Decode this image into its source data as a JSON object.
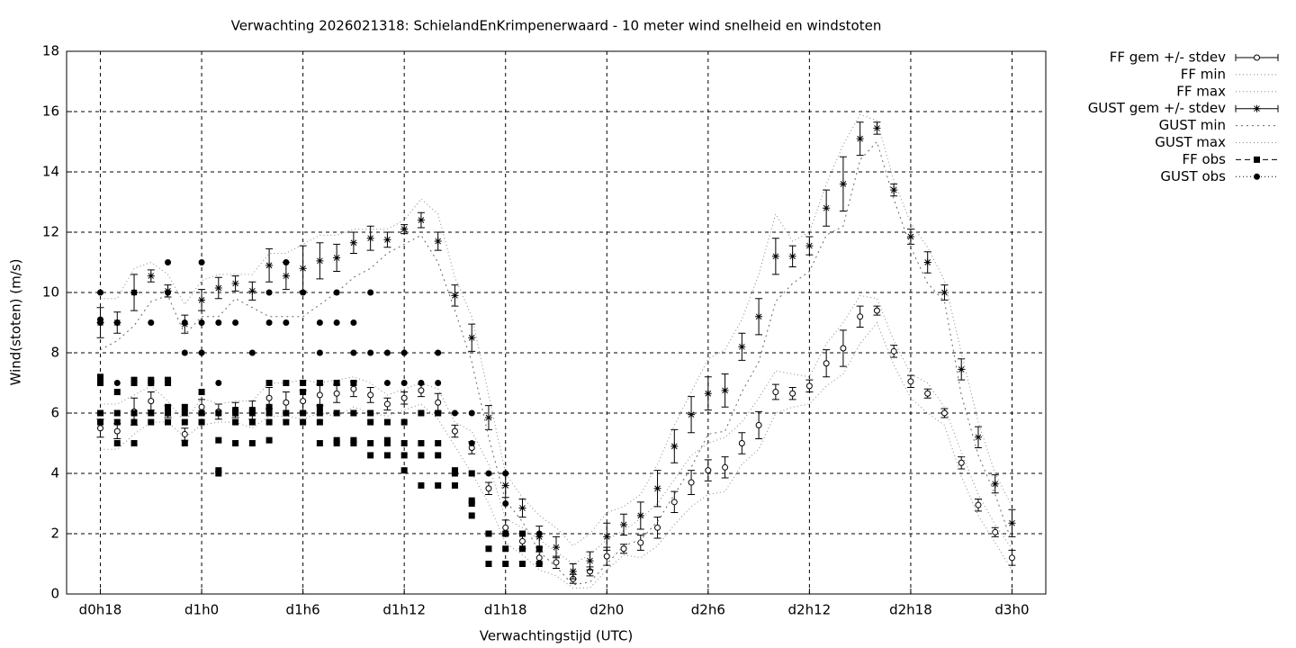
{
  "chart_data": {
    "type": "errorbar",
    "title": "Verwachting 2026021318: SchielandEnKrimpenerwaard - 10 meter wind snelheid en windstoten",
    "xlabel": "Verwachtingstijd (UTC)",
    "ylabel": "Wind(stoten) (m/s)",
    "xlim": [
      16,
      74
    ],
    "xticks": [
      {
        "value": 18,
        "label": "d0h18"
      },
      {
        "value": 24,
        "label": "d1h0"
      },
      {
        "value": 30,
        "label": "d1h6"
      },
      {
        "value": 36,
        "label": "d1h12"
      },
      {
        "value": 42,
        "label": "d1h18"
      },
      {
        "value": 48,
        "label": "d2h0"
      },
      {
        "value": 54,
        "label": "d2h6"
      },
      {
        "value": 60,
        "label": "d2h12"
      },
      {
        "value": 66,
        "label": "d2h18"
      },
      {
        "value": 72,
        "label": "d3h0"
      }
    ],
    "ylim": [
      0,
      18
    ],
    "yticks": [
      0,
      2,
      4,
      6,
      8,
      10,
      12,
      14,
      16,
      18
    ],
    "grid": true,
    "legend": "outside-right",
    "x": [
      18,
      19,
      20,
      21,
      22,
      23,
      24,
      25,
      26,
      27,
      28,
      29,
      30,
      31,
      32,
      33,
      34,
      35,
      36,
      37,
      38,
      39,
      40,
      41,
      42,
      43,
      44,
      45,
      46,
      47,
      48,
      49,
      50,
      51,
      52,
      53,
      54,
      55,
      56,
      57,
      58,
      59,
      60,
      61,
      62,
      63,
      64,
      65,
      66,
      67,
      68,
      69,
      70,
      71,
      72
    ],
    "series": [
      {
        "name": "FF gem +/- stdev",
        "color": "#000000",
        "style": "errorbars",
        "marker": "circle",
        "values": [
          5.5,
          5.4,
          6.05,
          6.4,
          6.05,
          5.3,
          6.2,
          6.05,
          6.1,
          6.1,
          6.5,
          6.35,
          6.4,
          6.6,
          6.65,
          6.8,
          6.6,
          6.3,
          6.5,
          6.75,
          6.35,
          5.4,
          4.85,
          3.5,
          2.2,
          1.75,
          1.2,
          1.05,
          0.5,
          0.75,
          1.25,
          1.5,
          1.7,
          2.2,
          3.05,
          3.7,
          4.1,
          4.2,
          5.0,
          5.6,
          6.7,
          6.65,
          6.9,
          7.65,
          8.15,
          9.2,
          9.4,
          8.05,
          7.05,
          6.65,
          6.0,
          4.35,
          2.95,
          2.05,
          1.2
        ],
        "errors": [
          0.3,
          0.25,
          0.45,
          0.3,
          0.2,
          0.2,
          0.25,
          0.25,
          0.25,
          0.3,
          0.35,
          0.35,
          0.35,
          0.35,
          0.3,
          0.25,
          0.25,
          0.2,
          0.2,
          0.2,
          0.3,
          0.2,
          0.2,
          0.2,
          0.25,
          0.25,
          0.2,
          0.2,
          0.15,
          0.15,
          0.3,
          0.15,
          0.25,
          0.35,
          0.35,
          0.4,
          0.35,
          0.35,
          0.35,
          0.45,
          0.25,
          0.2,
          0.2,
          0.45,
          0.6,
          0.35,
          0.15,
          0.2,
          0.2,
          0.15,
          0.15,
          0.2,
          0.2,
          0.15,
          0.25
        ]
      },
      {
        "name": "FF min",
        "color": "#888888",
        "style": "lines",
        "marker": "none",
        "values": [
          4.8,
          4.8,
          5.3,
          5.7,
          5.7,
          5.2,
          5.6,
          5.7,
          5.7,
          5.5,
          5.9,
          5.9,
          5.8,
          6.0,
          5.9,
          6.2,
          6.0,
          5.9,
          6.1,
          6.3,
          5.8,
          4.9,
          4.0,
          3.0,
          1.7,
          1.3,
          0.8,
          0.6,
          0.2,
          0.2,
          0.8,
          1.3,
          1.2,
          1.6,
          2.3,
          2.9,
          3.3,
          3.4,
          4.3,
          4.8,
          6.0,
          6.2,
          6.3,
          6.9,
          7.3,
          8.3,
          9.0,
          7.6,
          6.5,
          6.0,
          5.6,
          3.9,
          2.6,
          1.7,
          0.8
        ]
      },
      {
        "name": "FF max",
        "color": "#888888",
        "style": "lines",
        "marker": "none",
        "values": [
          6.3,
          6.3,
          6.6,
          6.9,
          6.4,
          5.7,
          6.5,
          6.3,
          6.4,
          6.4,
          7.0,
          7.0,
          7.1,
          7.0,
          7.1,
          7.2,
          7.0,
          6.6,
          6.8,
          7.0,
          6.8,
          5.7,
          5.4,
          4.3,
          2.5,
          2.2,
          1.8,
          1.4,
          1.0,
          1.3,
          1.8,
          2.1,
          2.5,
          3.0,
          3.8,
          4.6,
          5.0,
          5.2,
          5.7,
          6.5,
          7.4,
          7.3,
          7.2,
          8.3,
          9.0,
          9.9,
          9.8,
          8.4,
          7.3,
          7.0,
          6.2,
          4.7,
          3.3,
          2.3,
          1.5
        ]
      },
      {
        "name": "GUST gem +/- stdev",
        "color": "#000000",
        "style": "errorbars",
        "marker": "star",
        "values": [
          9.0,
          9.0,
          10.0,
          10.55,
          10.05,
          8.95,
          9.75,
          10.15,
          10.3,
          10.05,
          10.9,
          10.55,
          10.8,
          11.05,
          11.15,
          11.65,
          11.8,
          11.75,
          12.1,
          12.4,
          11.7,
          9.9,
          8.5,
          5.85,
          3.6,
          2.85,
          1.9,
          1.55,
          0.75,
          1.1,
          1.9,
          2.3,
          2.6,
          3.5,
          4.9,
          5.95,
          6.65,
          6.75,
          8.2,
          9.2,
          11.2,
          11.2,
          11.55,
          12.8,
          13.6,
          15.1,
          15.45,
          13.4,
          11.85,
          11.0,
          10.0,
          7.45,
          5.2,
          3.65,
          2.35
        ],
        "errors": [
          0.5,
          0.35,
          0.6,
          0.2,
          0.2,
          0.3,
          0.35,
          0.35,
          0.25,
          0.3,
          0.55,
          0.45,
          0.75,
          0.6,
          0.45,
          0.35,
          0.4,
          0.25,
          0.15,
          0.25,
          0.3,
          0.35,
          0.45,
          0.4,
          0.4,
          0.3,
          0.35,
          0.35,
          0.25,
          0.3,
          0.45,
          0.35,
          0.45,
          0.6,
          0.55,
          0.6,
          0.55,
          0.55,
          0.45,
          0.6,
          0.6,
          0.35,
          0.3,
          0.6,
          0.9,
          0.55,
          0.2,
          0.2,
          0.25,
          0.35,
          0.25,
          0.35,
          0.35,
          0.3,
          0.45
        ]
      },
      {
        "name": "GUST min",
        "color": "#666666",
        "style": "lines",
        "marker": "none",
        "values": [
          8.1,
          8.4,
          8.9,
          9.7,
          9.9,
          8.6,
          9.2,
          9.2,
          9.8,
          9.5,
          9.2,
          9.2,
          9.2,
          9.6,
          10.0,
          10.5,
          10.8,
          11.3,
          11.6,
          11.9,
          11.0,
          9.4,
          7.7,
          5.2,
          3.1,
          2.4,
          1.4,
          0.9,
          0.3,
          0.4,
          1.0,
          1.6,
          1.8,
          2.4,
          3.3,
          4.2,
          5.3,
          5.4,
          6.7,
          7.7,
          9.7,
          10.3,
          10.7,
          11.9,
          12.2,
          14.4,
          15.0,
          13.1,
          11.5,
          10.3,
          9.7,
          6.6,
          4.6,
          3.3,
          1.7
        ]
      },
      {
        "name": "GUST max",
        "color": "#888888",
        "style": "lines",
        "marker": "none",
        "values": [
          9.8,
          9.8,
          10.8,
          11.0,
          10.6,
          9.6,
          10.4,
          10.6,
          10.6,
          10.6,
          11.3,
          11.3,
          11.6,
          11.9,
          11.9,
          12.1,
          12.1,
          12.1,
          12.4,
          13.1,
          12.6,
          10.5,
          9.2,
          6.6,
          4.0,
          3.2,
          2.6,
          2.2,
          1.6,
          2.0,
          2.7,
          2.9,
          3.3,
          4.3,
          5.6,
          6.7,
          7.8,
          8.1,
          9.1,
          10.6,
          12.6,
          11.7,
          12.0,
          13.6,
          14.9,
          15.9,
          15.7,
          13.7,
          12.3,
          11.5,
          10.4,
          8.0,
          5.7,
          4.0,
          2.9
        ]
      },
      {
        "name": "FF obs",
        "color": "#000000",
        "style": "points",
        "marker": "square",
        "x": [
          18,
          18,
          18,
          18,
          19,
          19,
          19,
          19,
          20,
          20,
          20,
          20,
          20,
          21,
          21,
          21,
          21,
          22,
          22,
          22,
          22,
          22,
          23,
          23,
          23,
          23,
          24,
          24,
          24,
          25,
          25,
          25,
          25,
          26,
          26,
          26,
          26,
          27,
          27,
          27,
          27,
          28,
          28,
          28,
          28,
          28,
          29,
          29,
          29,
          30,
          30,
          30,
          30,
          31,
          31,
          31,
          31,
          31,
          32,
          32,
          32,
          32,
          33,
          33,
          33,
          33,
          34,
          34,
          34,
          34,
          35,
          35,
          35,
          35,
          36,
          36,
          36,
          36,
          37,
          37,
          37,
          37,
          38,
          38,
          38,
          38,
          39,
          39,
          39,
          40,
          40,
          40,
          40,
          41,
          41,
          41,
          42,
          42,
          42,
          43,
          43,
          43,
          44,
          44
        ],
        "values": [
          7.2,
          7.0,
          6.0,
          5.7,
          6.7,
          6.0,
          5.7,
          5.0,
          7.1,
          7.0,
          6.0,
          5.7,
          5.0,
          7.1,
          7.0,
          6.0,
          5.7,
          7.1,
          7.0,
          6.2,
          6.0,
          5.7,
          6.2,
          6.0,
          5.7,
          5.0,
          6.7,
          6.0,
          5.7,
          6.0,
          5.1,
          4.1,
          4.0,
          6.1,
          6.0,
          5.7,
          5.0,
          6.1,
          6.0,
          5.7,
          5.0,
          7.0,
          6.2,
          6.0,
          5.7,
          5.1,
          7.0,
          6.0,
          5.7,
          7.0,
          6.7,
          6.0,
          5.7,
          7.0,
          6.2,
          6.0,
          5.7,
          5.0,
          7.0,
          6.0,
          5.1,
          5.0,
          7.0,
          6.0,
          5.1,
          5.0,
          6.0,
          5.7,
          5.0,
          4.6,
          5.7,
          5.1,
          5.0,
          4.6,
          5.7,
          5.0,
          4.6,
          4.1,
          6.0,
          5.0,
          4.6,
          3.6,
          6.0,
          5.0,
          4.6,
          3.6,
          4.1,
          4.0,
          3.6,
          4.0,
          3.1,
          3.0,
          2.6,
          2.0,
          1.5,
          1.0,
          2.0,
          1.5,
          1.0,
          2.0,
          1.5,
          1.0,
          1.5,
          1.0
        ]
      },
      {
        "name": "GUST obs",
        "color": "#000000",
        "style": "points",
        "marker": "dot",
        "x": [
          18,
          18,
          18,
          19,
          19,
          20,
          20,
          21,
          21,
          22,
          22,
          23,
          23,
          24,
          24,
          24,
          25,
          25,
          26,
          27,
          28,
          28,
          29,
          29,
          30,
          30,
          31,
          31,
          32,
          32,
          33,
          33,
          34,
          34,
          35,
          35,
          36,
          36,
          37,
          37,
          38,
          38,
          38,
          39,
          40,
          40,
          41,
          41,
          42,
          42,
          42,
          43,
          44
        ],
        "values": [
          10,
          9.1,
          9,
          9,
          7,
          10,
          7,
          9,
          7,
          11,
          10,
          9,
          8,
          11,
          9,
          8,
          9,
          7,
          9,
          8,
          10,
          9,
          11,
          9,
          10,
          7,
          9,
          8,
          10,
          9,
          9,
          8,
          10,
          8,
          8,
          7,
          8,
          7,
          7,
          6,
          8,
          7,
          6,
          6,
          6,
          5,
          4,
          2,
          4,
          3,
          2,
          2,
          2
        ]
      }
    ]
  }
}
